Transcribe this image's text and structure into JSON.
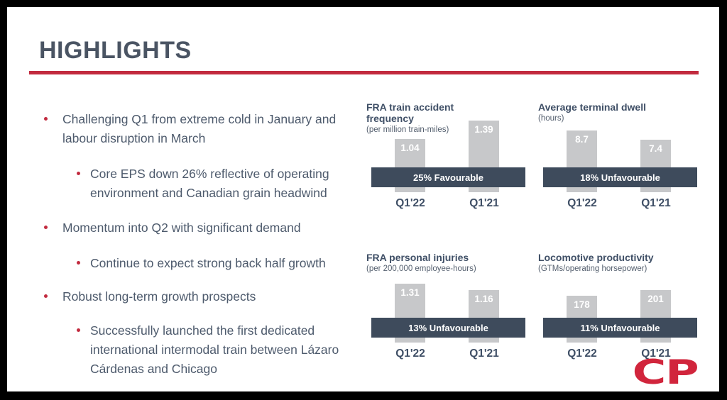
{
  "slide": {
    "title": "HIGHLIGHTS",
    "logo_text": "CP",
    "colors": {
      "accent_red": "#c22b3f",
      "band_dark": "#3e4b5c",
      "bar_gray": "#c7c8ca",
      "body_text": "#4d5a6c",
      "logo_red": "#d1253c"
    },
    "bullets": [
      {
        "level": 1,
        "text": "Challenging Q1 from extreme cold in January and labour disruption in March"
      },
      {
        "level": 2,
        "text": "Core EPS down 26% reflective of operating environment and Canadian grain headwind"
      },
      {
        "level": 1,
        "text": "Momentum into Q2 with significant demand"
      },
      {
        "level": 2,
        "text": "Continue to expect strong back half growth"
      },
      {
        "level": 1,
        "text": "Robust long-term growth prospects"
      },
      {
        "level": 2,
        "text": "Successfully launched the first dedicated international intermodal train between Lázaro Cárdenas and Chicago"
      }
    ]
  },
  "chart_data": [
    {
      "type": "bar",
      "title": "FRA train accident frequency",
      "subtitle": "(per million train-miles)",
      "categories": [
        "Q1'22",
        "Q1'21"
      ],
      "values": [
        1.04,
        1.39
      ],
      "value_labels": [
        "1.04",
        "1.39"
      ],
      "badge": "25% Favourable",
      "ylim": [
        0,
        1.45
      ],
      "grid": false,
      "legend": false
    },
    {
      "type": "bar",
      "title": "Average terminal dwell",
      "subtitle": "(hours)",
      "categories": [
        "Q1'22",
        "Q1'21"
      ],
      "values": [
        8.7,
        7.4
      ],
      "value_labels": [
        "8.7",
        "7.4"
      ],
      "badge": "18% Unfavourable",
      "ylim": [
        0,
        10.5
      ],
      "grid": false,
      "legend": false
    },
    {
      "type": "bar",
      "title": "FRA personal injuries",
      "subtitle": "(per 200,000 employee-hours)",
      "categories": [
        "Q1'22",
        "Q1'21"
      ],
      "values": [
        1.31,
        1.16
      ],
      "value_labels": [
        "1.31",
        "1.16"
      ],
      "badge": "13% Unfavourable",
      "ylim": [
        0,
        1.65
      ],
      "grid": false,
      "legend": false
    },
    {
      "type": "bar",
      "title": "Locomotive productivity",
      "subtitle": "(GTMs/operating horsepower)",
      "categories": [
        "Q1'22",
        "Q1'21"
      ],
      "values": [
        178,
        201
      ],
      "value_labels": [
        "178",
        "201"
      ],
      "badge": "11% Unfavourable",
      "ylim": [
        0,
        285
      ],
      "grid": false,
      "legend": false
    }
  ]
}
